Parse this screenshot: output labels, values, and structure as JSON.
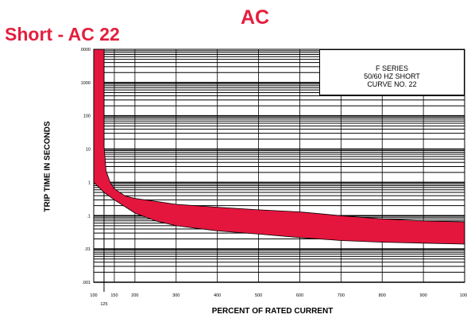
{
  "header": {
    "title": "AC",
    "subtitle": "Short - AC 22"
  },
  "colors": {
    "accent": "#e41e3e",
    "band": "#e4163e",
    "grid": "#000000"
  },
  "chart_data": {
    "type": "area",
    "title": "",
    "annotation": [
      "F SERIES",
      "50/60 HZ SHORT",
      "CURVE NO. 22"
    ],
    "xlabel": "PERCENT OF RATED CURRENT",
    "ylabel": "TRIP TIME IN SECONDS",
    "xlim": [
      0,
      1000
    ],
    "ylim_log10": [
      -3,
      4
    ],
    "y_scale": "log",
    "legend_position": "top-right",
    "grid": true,
    "x_ticks": [
      "100",
      "150",
      "200",
      "300",
      "400",
      "500",
      "600",
      "700",
      "800",
      "900",
      "1000"
    ],
    "x_tick_values": [
      100,
      150,
      200,
      300,
      400,
      500,
      600,
      700,
      800,
      900,
      1000
    ],
    "x_extra_tick": {
      "label": "125",
      "value": 125
    },
    "y_ticks": [
      "0000",
      "1000",
      "100",
      "10",
      "1",
      ".1",
      ".01",
      ".001"
    ],
    "y_tick_values": [
      10000,
      1000,
      100,
      10,
      1,
      0.1,
      0.01,
      0.001
    ],
    "series": [
      {
        "upper": [
          [
            125,
            10000
          ],
          [
            125,
            100
          ],
          [
            125,
            12
          ],
          [
            130,
            2.2
          ],
          [
            140,
            1.0
          ],
          [
            150,
            0.65
          ],
          [
            175,
            0.4
          ],
          [
            200,
            0.33
          ],
          [
            250,
            0.27
          ],
          [
            300,
            0.22
          ],
          [
            400,
            0.18
          ],
          [
            500,
            0.15
          ],
          [
            600,
            0.13
          ],
          [
            700,
            0.1
          ],
          [
            800,
            0.08
          ],
          [
            900,
            0.07
          ],
          [
            1000,
            0.065
          ]
        ],
        "lower": [
          [
            100,
            10000
          ],
          [
            100,
            1.0
          ],
          [
            125,
            0.5
          ],
          [
            150,
            0.3
          ],
          [
            200,
            0.12
          ],
          [
            250,
            0.07
          ],
          [
            300,
            0.05
          ],
          [
            400,
            0.035
          ],
          [
            500,
            0.028
          ],
          [
            600,
            0.022
          ],
          [
            700,
            0.018
          ],
          [
            800,
            0.016
          ],
          [
            900,
            0.015
          ],
          [
            1000,
            0.014
          ]
        ]
      }
    ]
  }
}
